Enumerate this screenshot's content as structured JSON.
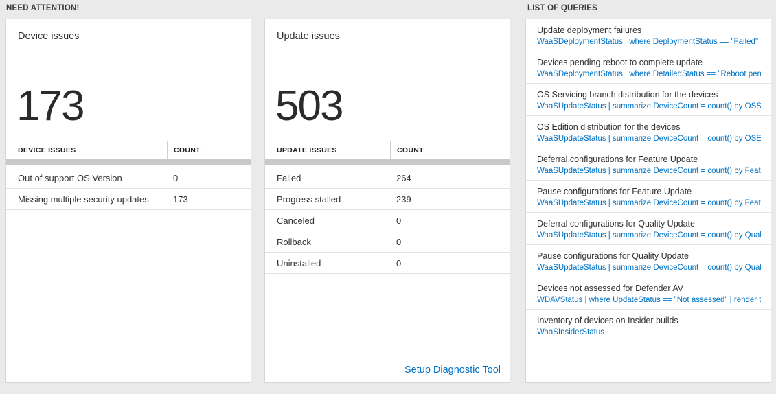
{
  "colors": {
    "accent_blue": "#0072c6",
    "background": "#eaeaea",
    "card_background": "#ffffff"
  },
  "need_attention": {
    "header": "NEED ATTENTION!",
    "device_card": {
      "title": "Device issues",
      "big_count": "173",
      "table": {
        "header_label": "DEVICE ISSUES",
        "header_count": "COUNT",
        "rows": [
          {
            "label": "Out of support OS Version",
            "count": "0"
          },
          {
            "label": "Missing multiple security updates",
            "count": "173"
          }
        ]
      }
    },
    "update_card": {
      "title": "Update issues",
      "big_count": "503",
      "table": {
        "header_label": "UPDATE ISSUES",
        "header_count": "COUNT",
        "rows": [
          {
            "label": "Failed",
            "count": "264"
          },
          {
            "label": "Progress stalled",
            "count": "239"
          },
          {
            "label": "Canceled",
            "count": "0"
          },
          {
            "label": "Rollback",
            "count": "0"
          },
          {
            "label": "Uninstalled",
            "count": "0"
          }
        ]
      },
      "footer_link": "Setup Diagnostic Tool"
    }
  },
  "queries": {
    "header": "LIST OF QUERIES",
    "items": [
      {
        "title": "Update deployment failures",
        "query": "WaaSDeploymentStatus | where DeploymentStatus == \"Failed\" |..."
      },
      {
        "title": "Devices pending reboot to complete update",
        "query": "WaaSDeploymentStatus | where DetailedStatus == \"Reboot pend..."
      },
      {
        "title": "OS Servicing branch distribution for the devices",
        "query": "WaaSUpdateStatus | summarize DeviceCount = count() by OSSer..."
      },
      {
        "title": "OS Edition distribution for the devices",
        "query": "WaaSUpdateStatus | summarize DeviceCount = count() by OSEdit..."
      },
      {
        "title": "Deferral configurations for Feature Update",
        "query": "WaaSUpdateStatus | summarize DeviceCount = count() by Featur..."
      },
      {
        "title": "Pause configurations for Feature Update",
        "query": "WaaSUpdateStatus | summarize DeviceCount = count() by Featur..."
      },
      {
        "title": "Deferral configurations for Quality Update",
        "query": "WaaSUpdateStatus | summarize DeviceCount = count() by Qualit..."
      },
      {
        "title": "Pause configurations for Quality Update",
        "query": "WaaSUpdateStatus | summarize DeviceCount = count() by Qualit..."
      },
      {
        "title": "Devices not assessed for Defender AV",
        "query": "WDAVStatus | where UpdateStatus == \"Not assessed\" | render ta..."
      },
      {
        "title": "Inventory of devices on Insider builds",
        "query": "WaaSInsiderStatus"
      }
    ]
  }
}
